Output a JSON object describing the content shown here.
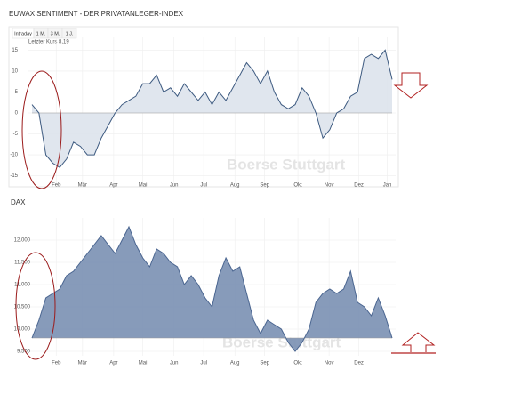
{
  "chart_data": [
    {
      "type": "area",
      "title": "EUWAX SENTIMENT - DER PRIVATANLEGER-INDEX",
      "tabs": [
        "Intraday",
        "1 M.",
        "3 M.",
        "1 J."
      ],
      "note": "Letzter Kurs 8,19",
      "watermark": "Boerse Stuttgart",
      "color": "#3d5a80",
      "fill": "#dde3ec",
      "x": [
        0,
        1,
        2,
        3,
        4,
        5,
        6,
        7,
        8,
        9,
        10,
        11,
        12,
        13,
        14,
        15,
        16,
        17,
        18,
        19,
        20,
        21,
        22,
        23,
        24,
        25,
        26,
        27,
        28,
        29,
        30,
        31,
        32,
        33,
        34,
        35,
        36,
        37,
        38,
        39,
        40,
        41,
        42,
        43,
        44,
        45,
        46,
        47,
        48,
        49,
        50,
        51,
        52
      ],
      "values": [
        2,
        0,
        -10,
        -12,
        -13,
        -11,
        -7,
        -8,
        -10,
        -10,
        -6,
        -3,
        0,
        2,
        3,
        4,
        7,
        7,
        9,
        5,
        6,
        4,
        7,
        5,
        3,
        5,
        2,
        5,
        3,
        6,
        9,
        12,
        10,
        7,
        10,
        5,
        2,
        1,
        2,
        6,
        4,
        0,
        -6,
        -4,
        0,
        1,
        4,
        5,
        13,
        14,
        13,
        15,
        8
      ],
      "xlim": [
        0,
        52
      ],
      "xticks": [
        {
          "value": 3.5,
          "label": "Feb"
        },
        {
          "value": 7.3,
          "label": "Mär"
        },
        {
          "value": 11.8,
          "label": "Apr"
        },
        {
          "value": 16,
          "label": "Mai"
        },
        {
          "value": 20.5,
          "label": "Jun"
        },
        {
          "value": 24.8,
          "label": "Jul"
        },
        {
          "value": 29.3,
          "label": "Aug"
        },
        {
          "value": 33.6,
          "label": "Sep"
        },
        {
          "value": 38.4,
          "label": "Okt"
        },
        {
          "value": 42.9,
          "label": "Nov"
        },
        {
          "value": 47.2,
          "label": "Dez"
        },
        {
          "value": 51.3,
          "label": "Jan"
        }
      ],
      "ylim": [
        -17,
        17
      ],
      "yticks": [
        15,
        10,
        5,
        0,
        -5,
        -10,
        -15
      ],
      "grid": true
    },
    {
      "type": "area",
      "title": "DAX",
      "watermark": "Boerse Stuttgart",
      "color": "#4a6590",
      "fill": "#7a90b2",
      "x": [
        0,
        1,
        2,
        3,
        4,
        5,
        6,
        7,
        8,
        9,
        10,
        11,
        12,
        13,
        14,
        15,
        16,
        17,
        18,
        19,
        20,
        21,
        22,
        23,
        24,
        25,
        26,
        27,
        28,
        29,
        30,
        31,
        32,
        33,
        34,
        35,
        36,
        37,
        38,
        39,
        40,
        41,
        42,
        43,
        44,
        45,
        46,
        47,
        48,
        49,
        50,
        51,
        52
      ],
      "values": [
        9800,
        10200,
        10700,
        10800,
        10900,
        11200,
        11300,
        11500,
        11700,
        11900,
        12100,
        11900,
        11700,
        12000,
        12300,
        11900,
        11600,
        11400,
        11800,
        11700,
        11500,
        11400,
        11000,
        11200,
        11000,
        10700,
        10500,
        11200,
        11600,
        11300,
        11400,
        10800,
        10200,
        9900,
        10200,
        10100,
        10000,
        9700,
        9500,
        9700,
        10000,
        10600,
        10800,
        10900,
        10800,
        10900,
        11300,
        10600,
        10500,
        10300,
        10700,
        10300,
        9800
      ],
      "xlim": [
        0,
        52
      ],
      "xticks": [
        {
          "value": 3.5,
          "label": "Feb"
        },
        {
          "value": 7.3,
          "label": "Mär"
        },
        {
          "value": 11.8,
          "label": "Apr"
        },
        {
          "value": 16,
          "label": "Mai"
        },
        {
          "value": 20.5,
          "label": "Jun"
        },
        {
          "value": 24.8,
          "label": "Jul"
        },
        {
          "value": 29.3,
          "label": "Aug"
        },
        {
          "value": 33.6,
          "label": "Sep"
        },
        {
          "value": 38.4,
          "label": "Okt"
        },
        {
          "value": 42.9,
          "label": "Nov"
        },
        {
          "value": 47.2,
          "label": "Dez"
        }
      ],
      "ylim": [
        9400,
        12400
      ],
      "yticks": [
        {
          "value": 12000,
          "label": "12.000"
        },
        {
          "value": 11500,
          "label": "11.500"
        },
        {
          "value": 11000,
          "label": "11.000"
        },
        {
          "value": 10500,
          "label": "10.500"
        },
        {
          "value": 10000,
          "label": "10.000"
        },
        {
          "value": 9500,
          "label": "9.500"
        }
      ],
      "grid": true
    }
  ]
}
